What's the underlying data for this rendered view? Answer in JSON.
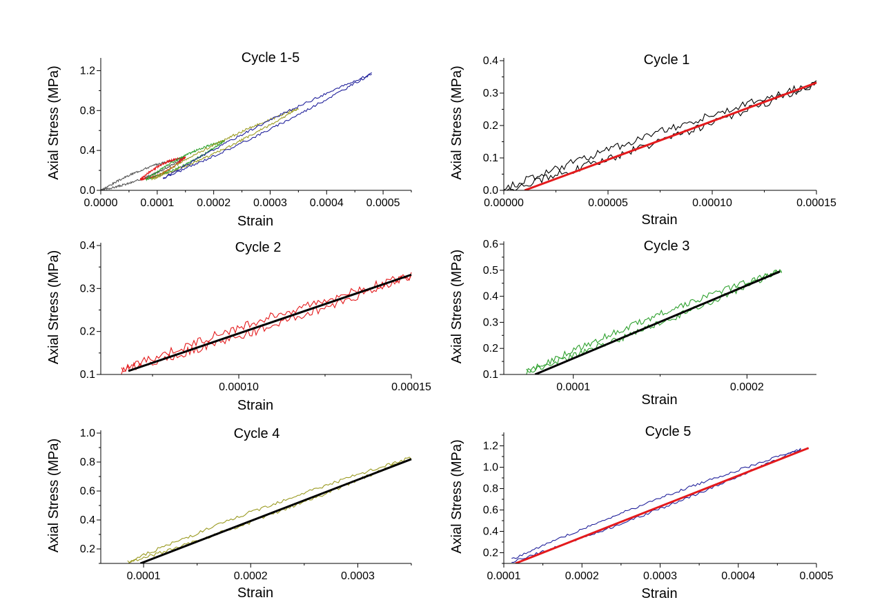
{
  "chart_data": [
    {
      "type": "line",
      "title": "Cycle 1-5",
      "xlabel": "Strain",
      "ylabel": "Axial Stress (MPa)",
      "xlim": [
        0,
        0.00055
      ],
      "ylim": [
        0,
        1.3
      ],
      "xticks": [
        "0.0000",
        "0.0001",
        "0.0002",
        "0.0003",
        "0.0004",
        "0.0005"
      ],
      "yticks": [
        "0.0",
        "0.4",
        "0.8",
        "1.2"
      ],
      "series": [
        {
          "color": "#555555",
          "style": "loop",
          "x": [
            0,
            0.00015
          ],
          "lower": [
            0,
            0.33
          ],
          "upper": [
            0,
            0.33
          ],
          "noise": 0.01
        },
        {
          "color": "#e41a1c",
          "style": "loop",
          "x": [
            7e-05,
            0.00015
          ],
          "lower": [
            0.11,
            0.33
          ],
          "upper": [
            0.11,
            0.33
          ],
          "noise": 0.01
        },
        {
          "color": "#2ca02c",
          "style": "loop",
          "x": [
            8e-05,
            0.00022
          ],
          "lower": [
            0.11,
            0.5
          ],
          "upper": [
            0.11,
            0.5
          ],
          "noise": 0.01
        },
        {
          "color": "#9a9a20",
          "style": "loop",
          "x": [
            9e-05,
            0.00035
          ],
          "lower": [
            0.11,
            0.82
          ],
          "upper": [
            0.11,
            0.82
          ],
          "noise": 0.012
        },
        {
          "color": "#1f1f9a",
          "style": "loop",
          "x": [
            0.00011,
            0.00048
          ],
          "lower": [
            0.12,
            1.17
          ],
          "upper": [
            0.12,
            1.17
          ],
          "noise": 0.012
        }
      ]
    },
    {
      "type": "line",
      "title": "Cycle 1",
      "xlabel": "Strain",
      "ylabel": "Axial Stress (MPa)",
      "xlim": [
        0,
        0.00015
      ],
      "ylim": [
        0,
        0.4
      ],
      "xticks": [
        "0.00000",
        "0.00005",
        "0.00010",
        "0.00015"
      ],
      "yticks": [
        "0.0",
        "0.1",
        "0.2",
        "0.3",
        "0.4"
      ],
      "series": [
        {
          "color": "#000000",
          "style": "loop",
          "x": [
            0,
            0.00015
          ],
          "lower": [
            0,
            0.33
          ],
          "upper": [
            0.005,
            0.33
          ],
          "noise": 0.012
        },
        {
          "color": "#e41a1c",
          "style": "fit",
          "x": [
            1e-05,
            0.00015
          ],
          "y": [
            0.0,
            0.332
          ]
        }
      ]
    },
    {
      "type": "line",
      "title": "Cycle 2",
      "xlabel": "Strain",
      "ylabel": "Axial Stress (MPa)",
      "xlim": [
        6e-05,
        0.00015
      ],
      "ylim": [
        0.1,
        0.4
      ],
      "xticks": [
        "0.00010",
        "0.00015"
      ],
      "yticks": [
        "0.1",
        "0.2",
        "0.3",
        "0.4"
      ],
      "series": [
        {
          "color": "#e41a1c",
          "style": "loop",
          "x": [
            6.6e-05,
            0.00015
          ],
          "lower": [
            0.11,
            0.33
          ],
          "upper": [
            0.11,
            0.33
          ],
          "noise": 0.01
        },
        {
          "color": "#000000",
          "style": "fit",
          "x": [
            6.8e-05,
            0.00015
          ],
          "y": [
            0.108,
            0.332
          ]
        }
      ]
    },
    {
      "type": "line",
      "title": "Cycle 3",
      "xlabel": "Strain",
      "ylabel": "Axial Stress (MPa)",
      "xlim": [
        6e-05,
        0.00024
      ],
      "ylim": [
        0.1,
        0.6
      ],
      "xticks": [
        "0.0001",
        "0.0002"
      ],
      "yticks": [
        "0.1",
        "0.2",
        "0.3",
        "0.4",
        "0.5",
        "0.6"
      ],
      "series": [
        {
          "color": "#2ca02c",
          "style": "loop",
          "x": [
            7.3e-05,
            0.00022
          ],
          "lower": [
            0.11,
            0.5
          ],
          "upper": [
            0.11,
            0.5
          ],
          "noise": 0.012
        },
        {
          "color": "#000000",
          "style": "fit",
          "x": [
            7.8e-05,
            0.000219
          ],
          "y": [
            0.1,
            0.495
          ]
        }
      ]
    },
    {
      "type": "line",
      "title": "Cycle 4",
      "xlabel": "Strain",
      "ylabel": "Axial Stress (MPa)",
      "xlim": [
        6e-05,
        0.00035
      ],
      "ylim": [
        0.1,
        1.0
      ],
      "xticks": [
        "0.0001",
        "0.0002",
        "0.0003"
      ],
      "yticks": [
        "0.2",
        "0.4",
        "0.6",
        "0.8",
        "1.0"
      ],
      "series": [
        {
          "color": "#9a9a20",
          "style": "loop",
          "x": [
            8.5e-05,
            0.00035
          ],
          "lower": [
            0.1,
            0.83
          ],
          "upper": [
            0.11,
            0.83
          ],
          "noise": 0.012
        },
        {
          "color": "#000000",
          "style": "fit",
          "x": [
            9.7e-05,
            0.00035
          ],
          "y": [
            0.1,
            0.82
          ]
        }
      ]
    },
    {
      "type": "line",
      "title": "Cycle 5",
      "xlabel": "Strain",
      "ylabel": "Axial Stress (MPa)",
      "xlim": [
        0.0001,
        0.0005
      ],
      "ylim": [
        0.1,
        1.3
      ],
      "xticks": [
        "0.0001",
        "0.0002",
        "0.0003",
        "0.0004",
        "0.0005"
      ],
      "yticks": [
        "0.2",
        "0.4",
        "0.6",
        "0.8",
        "1.0",
        "1.2"
      ],
      "series": [
        {
          "color": "#1f1f9a",
          "style": "loop",
          "x": [
            0.00011,
            0.00048
          ],
          "lower": [
            0.11,
            1.17
          ],
          "upper": [
            0.14,
            1.17
          ],
          "noise": 0.012
        },
        {
          "color": "#e41a1c",
          "style": "fit",
          "x": [
            0.000115,
            0.00049
          ],
          "y": [
            0.1,
            1.18
          ]
        }
      ]
    }
  ]
}
